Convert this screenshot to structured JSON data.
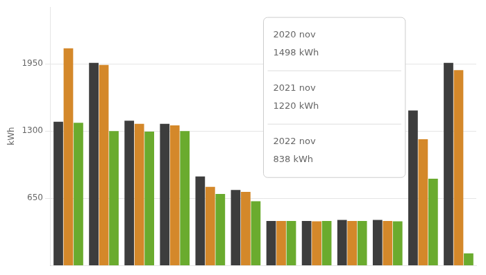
{
  "chart_data": {
    "type": "bar",
    "ylabel": "kWh",
    "categories": [
      null,
      null,
      null,
      null,
      null,
      null,
      null,
      null,
      null,
      null,
      null,
      null
    ],
    "series": [
      {
        "color": "#3d3d3d",
        "values": [
          1390,
          1960,
          1400,
          1370,
          860,
          730,
          430,
          430,
          440,
          440,
          1498,
          1960
        ]
      },
      {
        "color": "#d4882a",
        "values": [
          2100,
          1940,
          1370,
          1355,
          760,
          710,
          430,
          425,
          430,
          430,
          1220,
          1890
        ]
      },
      {
        "color": "#6aab2e",
        "values": [
          1380,
          1300,
          1295,
          1300,
          690,
          620,
          430,
          430,
          430,
          425,
          838,
          115
        ]
      }
    ],
    "ylim": [
      0,
      2500
    ],
    "yticks": [
      650,
      1300,
      1950
    ],
    "grid": true,
    "tick_labels": "y",
    "annotations": [
      [
        "2020 nov",
        "1498 kWh"
      ],
      [
        "2021 nov",
        "1220 kWh"
      ],
      [
        "2022 nov",
        "838 kWh"
      ]
    ]
  }
}
